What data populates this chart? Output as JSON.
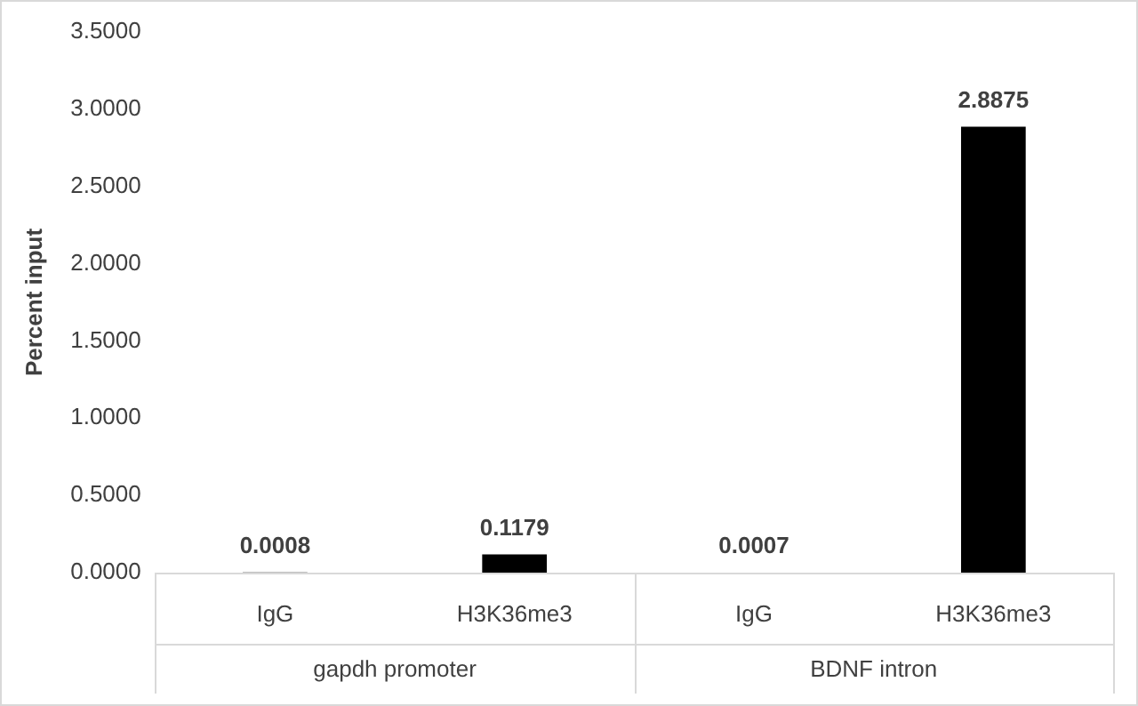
{
  "chart_data": {
    "type": "bar",
    "ylabel": "Percent input",
    "categories": [
      "IgG",
      "H3K36me3",
      "IgG",
      "H3K36me3"
    ],
    "values": [
      0.0008,
      0.1179,
      0.0007,
      2.8875
    ],
    "color": "#000000",
    "ylim": [
      0,
      3.5
    ],
    "yticks": [
      {
        "value": 0,
        "label": "0.0000"
      },
      {
        "value": 0.5,
        "label": "0.5000"
      },
      {
        "value": 1,
        "label": "1.0000"
      },
      {
        "value": 1.5,
        "label": "1.5000"
      },
      {
        "value": 2,
        "label": "2.0000"
      },
      {
        "value": 2.5,
        "label": "2.5000"
      },
      {
        "value": 3,
        "label": "3.0000"
      },
      {
        "value": 3.5,
        "label": "3.5000"
      }
    ],
    "annotations": [
      "gapdh promoter",
      "BDNF intron"
    ],
    "data_labels": true,
    "grid": false,
    "legend": false
  }
}
